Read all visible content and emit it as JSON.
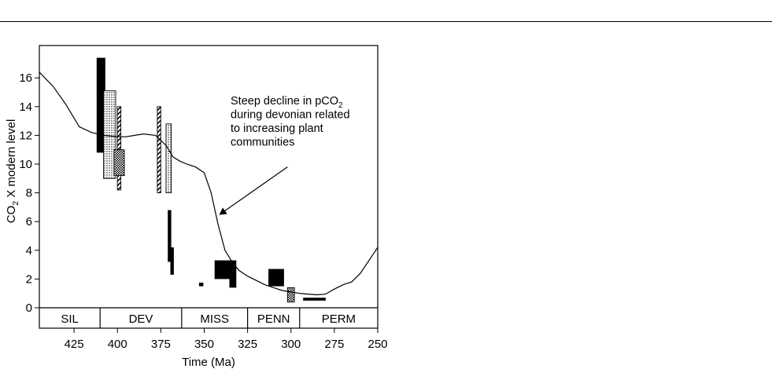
{
  "chart_data": {
    "type": "line",
    "xlabel": "Time (Ma)",
    "ylabel_main": "CO",
    "ylabel_sub": "2",
    "ylabel_rest": " X modern level",
    "xlim": [
      445,
      250
    ],
    "ylim": [
      0,
      18
    ],
    "x_ticks": [
      425,
      400,
      375,
      350,
      325,
      300,
      275,
      250
    ],
    "y_ticks": [
      0,
      2,
      4,
      6,
      8,
      10,
      12,
      14,
      16
    ],
    "periods": [
      {
        "label": "SIL",
        "start": 445,
        "end": 410
      },
      {
        "label": "DEV",
        "start": 410,
        "end": 363
      },
      {
        "label": "MISS",
        "start": 363,
        "end": 325
      },
      {
        "label": "PENN",
        "start": 325,
        "end": 295
      },
      {
        "label": "PERM",
        "start": 295,
        "end": 250
      }
    ],
    "series": [
      {
        "style": "line",
        "x": [
          445,
          437,
          430,
          422,
          415,
          408,
          400,
          395,
          390,
          385,
          378,
          372,
          368,
          364,
          360,
          355,
          350,
          346,
          342,
          338,
          334,
          330,
          325,
          320,
          315,
          310,
          305,
          300,
          295,
          290,
          285,
          280,
          275,
          270,
          265,
          260,
          255,
          250
        ],
        "values": [
          16.4,
          15.4,
          14.2,
          12.6,
          12.2,
          12.0,
          11.9,
          11.9,
          12.0,
          12.1,
          12.0,
          11.3,
          10.5,
          10.2,
          10.0,
          9.8,
          9.4,
          8.0,
          5.8,
          4.0,
          3.2,
          2.6,
          2.2,
          1.9,
          1.6,
          1.4,
          1.2,
          1.1,
          1.0,
          0.95,
          0.9,
          0.95,
          1.3,
          1.6,
          1.8,
          2.4,
          3.3,
          4.2
        ]
      }
    ],
    "proxy_bars": [
      {
        "pattern": "solid",
        "x0": 412,
        "x1": 407,
        "y0": 10.8,
        "y1": 17.4
      },
      {
        "pattern": "dots",
        "x0": 408,
        "x1": 401,
        "y0": 9.0,
        "y1": 15.1
      },
      {
        "pattern": "hatch",
        "x0": 400,
        "x1": 398,
        "y0": 8.2,
        "y1": 14.0
      },
      {
        "pattern": "check",
        "x0": 402,
        "x1": 396,
        "y0": 9.2,
        "y1": 11.0
      },
      {
        "pattern": "hatch",
        "x0": 377,
        "x1": 375,
        "y0": 8.0,
        "y1": 14.0
      },
      {
        "pattern": "dots",
        "x0": 372,
        "x1": 369,
        "y0": 8.0,
        "y1": 12.8
      },
      {
        "pattern": "solid",
        "x0": 371,
        "x1": 369,
        "y0": 3.2,
        "y1": 6.8
      },
      {
        "pattern": "solid",
        "x0": 369.5,
        "x1": 367.5,
        "y0": 2.3,
        "y1": 4.2
      },
      {
        "pattern": "solid",
        "x0": 353,
        "x1": 350.5,
        "y0": 1.5,
        "y1": 1.75
      },
      {
        "pattern": "solid",
        "x0": 344,
        "x1": 335,
        "y0": 2.0,
        "y1": 3.3
      },
      {
        "pattern": "solid",
        "x0": 335.5,
        "x1": 331.5,
        "y0": 1.4,
        "y1": 3.3
      },
      {
        "pattern": "solid",
        "x0": 313,
        "x1": 304,
        "y0": 1.5,
        "y1": 2.7
      },
      {
        "pattern": "check",
        "x0": 302,
        "x1": 298,
        "y0": 0.4,
        "y1": 1.4
      },
      {
        "pattern": "solid",
        "x0": 293,
        "x1": 280,
        "y0": 0.5,
        "y1": 0.7
      }
    ],
    "annotation": {
      "lines": [
        "Steep decline in pCO",
        "during devonian related",
        "to increasing plant",
        "communities"
      ],
      "sub": "2",
      "arrow_from": [
        302,
        9.8
      ],
      "arrow_to": [
        341,
        6.5
      ]
    }
  }
}
